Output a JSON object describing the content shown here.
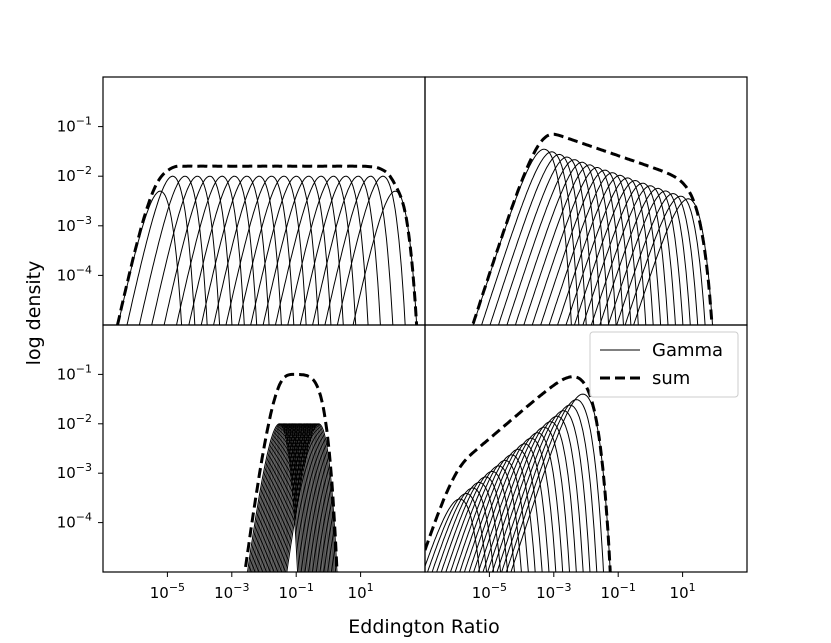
{
  "figure": {
    "xlabel": "Eddington Ratio",
    "ylabel": "log density"
  },
  "chart_data": {
    "type": "line",
    "xscale": "log",
    "yscale": "log",
    "xlim": [
      1e-07,
      1000.0
    ],
    "ylim": [
      1e-05,
      1
    ],
    "xticks": [
      {
        "value": 1e-05,
        "base": "10",
        "exp": "−5"
      },
      {
        "value": 0.001,
        "base": "10",
        "exp": "−3"
      },
      {
        "value": 0.1,
        "base": "10",
        "exp": "−1"
      },
      {
        "value": 10.0,
        "base": "10",
        "exp": "1"
      }
    ],
    "yticks": [
      {
        "value": 0.1,
        "base": "10",
        "exp": "−1"
      },
      {
        "value": 0.01,
        "base": "10",
        "exp": "−2"
      },
      {
        "value": 0.001,
        "base": "10",
        "exp": "−3"
      },
      {
        "value": 0.0001,
        "base": "10",
        "exp": "−4"
      }
    ],
    "legend": {
      "placement": "upper-right of bottom-right panel",
      "entries": [
        {
          "label": "Gamma",
          "style": "solid",
          "width": 1
        },
        {
          "label": "sum",
          "style": "dashed",
          "width": 3
        }
      ]
    },
    "panels": [
      {
        "position": "top-left",
        "gamma_count": 20,
        "gamma_peak_x_range": [
          6e-06,
          120
        ],
        "gamma_peak_y": [
          0.005,
          0.01,
          0.01,
          0.01,
          0.01,
          0.01,
          0.01,
          0.01,
          0.01,
          0.01,
          0.01,
          0.01,
          0.01,
          0.01,
          0.01,
          0.01,
          0.01,
          0.01,
          0.01,
          0.005
        ],
        "sum_peak_y": 0.016,
        "sum_x_extent": [
          2e-07,
          230
        ]
      },
      {
        "position": "top-right",
        "gamma_count": 20,
        "gamma_peak_x_range": [
          0.0005,
          15
        ],
        "gamma_peak_y_range": [
          0.035,
          0.0035
        ],
        "sum_peak_y": 0.07,
        "sum_x_extent": [
          2.5e-06,
          25
        ]
      },
      {
        "position": "bottom-left",
        "gamma_count": 30,
        "gamma_peak_x_range": [
          0.03,
          0.5
        ],
        "gamma_peak_y": 0.01,
        "sum_peak_y": 0.1,
        "sum_x_extent": [
          0.0003,
          3
        ]
      },
      {
        "position": "bottom-right",
        "gamma_count": 20,
        "gamma_peak_x_range": [
          1.2e-06,
          0.008
        ],
        "gamma_peak_y_range": [
          0.0003,
          0.04
        ],
        "sum_peak_y": 0.09,
        "sum_x_extent": [
          1.8e-07,
          0.03
        ]
      }
    ]
  }
}
